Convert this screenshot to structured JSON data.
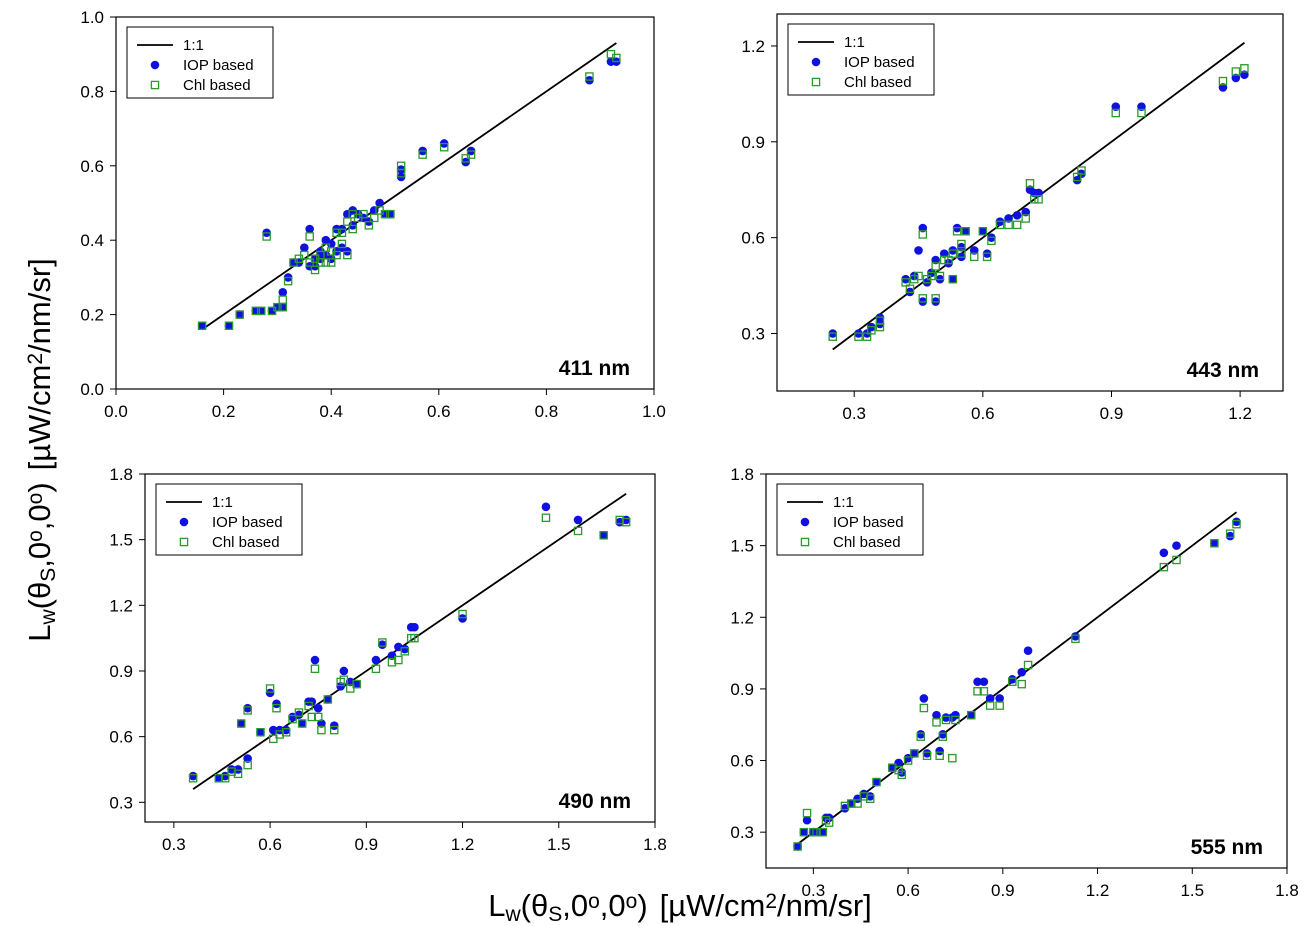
{
  "figure": {
    "ylabel": {
      "base": "L",
      "sub_w": "w",
      "open": "(θ",
      "sub_s": "S",
      "mid1": ",0",
      "sup_o1": "o",
      "mid2": ",0",
      "sup_o2": "o",
      "close": ")",
      "unit_pre": "[µW/cm",
      "sup_2": "2",
      "unit_post": "/nm/sr]"
    },
    "xlabel": {
      "base": "L",
      "sub_w": "w",
      "open": "(θ",
      "sub_s": "S",
      "mid1": ",0",
      "sup_o1": "o",
      "mid2": ",0",
      "sup_o2": "o",
      "close": ")",
      "unit_pre": "[µW/cm",
      "sup_2": "2",
      "unit_post": "/nm/sr]"
    }
  },
  "chart_data": [
    {
      "type": "scatter",
      "wavelength_label": "411 nm",
      "legend": {
        "line": "1:1",
        "iop": "IOP based",
        "chl": "Chl based",
        "placement": "top-left"
      },
      "xlim": [
        0.0,
        1.0
      ],
      "ylim": [
        0.0,
        1.0
      ],
      "xticks": [
        0.0,
        0.2,
        0.4,
        0.6,
        0.8,
        1.0
      ],
      "yticks": [
        0.0,
        0.2,
        0.4,
        0.6,
        0.8,
        1.0
      ],
      "tick_decimals": 1,
      "line_1to1": [
        0.16,
        0.93
      ],
      "colors": {
        "iop": "#1010e0",
        "chl": "#2a9a2a",
        "line": "#000000"
      },
      "series": [
        {
          "name": "IOP based",
          "marker": "circle",
          "x": [
            0.16,
            0.21,
            0.23,
            0.26,
            0.27,
            0.28,
            0.29,
            0.3,
            0.31,
            0.31,
            0.32,
            0.33,
            0.34,
            0.35,
            0.36,
            0.36,
            0.37,
            0.37,
            0.38,
            0.38,
            0.39,
            0.39,
            0.4,
            0.4,
            0.41,
            0.41,
            0.42,
            0.42,
            0.43,
            0.43,
            0.44,
            0.44,
            0.45,
            0.46,
            0.47,
            0.48,
            0.49,
            0.5,
            0.51,
            0.53,
            0.53,
            0.57,
            0.61,
            0.65,
            0.66,
            0.88,
            0.92,
            0.93
          ],
          "y": [
            0.17,
            0.17,
            0.2,
            0.21,
            0.21,
            0.42,
            0.21,
            0.22,
            0.26,
            0.22,
            0.3,
            0.34,
            0.34,
            0.38,
            0.33,
            0.43,
            0.35,
            0.33,
            0.35,
            0.37,
            0.4,
            0.36,
            0.35,
            0.39,
            0.37,
            0.43,
            0.38,
            0.43,
            0.47,
            0.37,
            0.44,
            0.48,
            0.47,
            0.46,
            0.45,
            0.48,
            0.5,
            0.47,
            0.47,
            0.57,
            0.59,
            0.64,
            0.66,
            0.61,
            0.64,
            0.83,
            0.88,
            0.88
          ]
        },
        {
          "name": "Chl based",
          "marker": "square",
          "x": [
            0.16,
            0.21,
            0.23,
            0.26,
            0.27,
            0.28,
            0.29,
            0.3,
            0.31,
            0.31,
            0.32,
            0.33,
            0.34,
            0.35,
            0.36,
            0.36,
            0.37,
            0.37,
            0.38,
            0.38,
            0.39,
            0.39,
            0.4,
            0.4,
            0.41,
            0.41,
            0.42,
            0.42,
            0.43,
            0.43,
            0.44,
            0.44,
            0.45,
            0.46,
            0.47,
            0.48,
            0.49,
            0.5,
            0.51,
            0.53,
            0.53,
            0.57,
            0.61,
            0.65,
            0.66,
            0.88,
            0.92,
            0.93
          ],
          "y": [
            0.17,
            0.17,
            0.2,
            0.21,
            0.21,
            0.41,
            0.21,
            0.22,
            0.24,
            0.22,
            0.29,
            0.34,
            0.35,
            0.36,
            0.34,
            0.41,
            0.35,
            0.32,
            0.34,
            0.36,
            0.38,
            0.34,
            0.34,
            0.37,
            0.36,
            0.42,
            0.39,
            0.42,
            0.45,
            0.36,
            0.43,
            0.47,
            0.46,
            0.47,
            0.44,
            0.46,
            0.48,
            0.47,
            0.47,
            0.6,
            0.58,
            0.63,
            0.65,
            0.62,
            0.63,
            0.84,
            0.9,
            0.89
          ]
        }
      ]
    },
    {
      "type": "scatter",
      "wavelength_label": "443 nm",
      "legend": {
        "line": "1:1",
        "iop": "IOP based",
        "chl": "Chl based",
        "placement": "top-left"
      },
      "xlim": [
        0.12,
        1.3
      ],
      "ylim": [
        0.12,
        1.3
      ],
      "xticks": [
        0.3,
        0.6,
        0.9,
        1.2
      ],
      "yticks": [
        0.3,
        0.6,
        0.9,
        1.2
      ],
      "tick_decimals": 1,
      "line_1to1": [
        0.25,
        1.21
      ],
      "colors": {
        "iop": "#1010e0",
        "chl": "#2a9a2a",
        "line": "#000000"
      },
      "series": [
        {
          "name": "IOP based",
          "marker": "circle",
          "x": [
            0.25,
            0.31,
            0.33,
            0.34,
            0.36,
            0.36,
            0.42,
            0.43,
            0.44,
            0.45,
            0.46,
            0.46,
            0.47,
            0.48,
            0.49,
            0.49,
            0.5,
            0.51,
            0.52,
            0.53,
            0.53,
            0.54,
            0.55,
            0.55,
            0.56,
            0.58,
            0.6,
            0.61,
            0.62,
            0.64,
            0.66,
            0.68,
            0.7,
            0.71,
            0.72,
            0.73,
            0.82,
            0.83,
            0.91,
            0.97,
            1.16,
            1.19,
            1.21
          ],
          "y": [
            0.3,
            0.3,
            0.3,
            0.32,
            0.33,
            0.35,
            0.47,
            0.43,
            0.48,
            0.56,
            0.63,
            0.4,
            0.46,
            0.49,
            0.4,
            0.53,
            0.47,
            0.55,
            0.52,
            0.47,
            0.56,
            0.63,
            0.57,
            0.54,
            0.62,
            0.56,
            0.62,
            0.55,
            0.6,
            0.65,
            0.66,
            0.67,
            0.68,
            0.75,
            0.74,
            0.74,
            0.78,
            0.8,
            1.01,
            1.01,
            1.07,
            1.1,
            1.11
          ]
        },
        {
          "name": "Chl based",
          "marker": "square",
          "x": [
            0.25,
            0.31,
            0.33,
            0.34,
            0.36,
            0.36,
            0.42,
            0.43,
            0.44,
            0.45,
            0.46,
            0.46,
            0.47,
            0.48,
            0.49,
            0.49,
            0.5,
            0.51,
            0.52,
            0.53,
            0.53,
            0.54,
            0.55,
            0.55,
            0.56,
            0.58,
            0.6,
            0.61,
            0.62,
            0.64,
            0.66,
            0.68,
            0.7,
            0.71,
            0.72,
            0.73,
            0.82,
            0.83,
            0.91,
            0.97,
            1.16,
            1.19,
            1.21
          ],
          "y": [
            0.29,
            0.29,
            0.29,
            0.31,
            0.32,
            0.34,
            0.46,
            0.44,
            0.47,
            0.48,
            0.61,
            0.41,
            0.47,
            0.48,
            0.41,
            0.51,
            0.48,
            0.53,
            0.53,
            0.47,
            0.55,
            0.62,
            0.58,
            0.55,
            0.62,
            0.54,
            0.62,
            0.54,
            0.59,
            0.64,
            0.64,
            0.64,
            0.66,
            0.77,
            0.72,
            0.72,
            0.79,
            0.81,
            0.99,
            0.99,
            1.09,
            1.12,
            1.13
          ]
        }
      ]
    },
    {
      "type": "scatter",
      "wavelength_label": "490 nm",
      "legend": {
        "line": "1:1",
        "iop": "IOP based",
        "chl": "Chl based",
        "placement": "top-left"
      },
      "xlim": [
        0.21,
        1.8
      ],
      "ylim": [
        0.21,
        1.8
      ],
      "xticks": [
        0.3,
        0.6,
        0.9,
        1.2,
        1.5,
        1.8
      ],
      "yticks": [
        0.3,
        0.6,
        0.9,
        1.2,
        1.5,
        1.8
      ],
      "tick_decimals": 1,
      "line_1to1": [
        0.36,
        1.71
      ],
      "colors": {
        "iop": "#1010e0",
        "chl": "#2a9a2a",
        "line": "#000000"
      },
      "series": [
        {
          "name": "IOP based",
          "marker": "circle",
          "x": [
            0.36,
            0.44,
            0.46,
            0.48,
            0.5,
            0.51,
            0.53,
            0.53,
            0.57,
            0.6,
            0.61,
            0.62,
            0.63,
            0.65,
            0.67,
            0.69,
            0.7,
            0.72,
            0.73,
            0.74,
            0.75,
            0.76,
            0.78,
            0.8,
            0.82,
            0.83,
            0.85,
            0.87,
            0.93,
            0.95,
            0.98,
            1.0,
            1.02,
            1.04,
            1.05,
            1.2,
            1.46,
            1.56,
            1.64,
            1.69,
            1.71
          ],
          "y": [
            0.42,
            0.41,
            0.42,
            0.45,
            0.45,
            0.66,
            0.5,
            0.73,
            0.62,
            0.8,
            0.63,
            0.75,
            0.63,
            0.63,
            0.69,
            0.7,
            0.66,
            0.76,
            0.76,
            0.95,
            0.73,
            0.66,
            0.77,
            0.65,
            0.83,
            0.9,
            0.85,
            0.84,
            0.95,
            1.02,
            0.97,
            1.01,
            1.0,
            1.1,
            1.1,
            1.14,
            1.65,
            1.59,
            1.52,
            1.58,
            1.59
          ]
        },
        {
          "name": "Chl based",
          "marker": "square",
          "x": [
            0.36,
            0.44,
            0.46,
            0.48,
            0.5,
            0.51,
            0.53,
            0.53,
            0.57,
            0.6,
            0.61,
            0.62,
            0.63,
            0.65,
            0.67,
            0.69,
            0.7,
            0.72,
            0.73,
            0.74,
            0.75,
            0.76,
            0.78,
            0.8,
            0.82,
            0.83,
            0.85,
            0.87,
            0.93,
            0.95,
            0.98,
            1.0,
            1.02,
            1.04,
            1.05,
            1.2,
            1.46,
            1.56,
            1.64,
            1.69,
            1.71
          ],
          "y": [
            0.41,
            0.41,
            0.41,
            0.44,
            0.43,
            0.66,
            0.47,
            0.72,
            0.62,
            0.82,
            0.59,
            0.73,
            0.61,
            0.62,
            0.68,
            0.71,
            0.66,
            0.74,
            0.69,
            0.91,
            0.69,
            0.63,
            0.77,
            0.63,
            0.85,
            0.86,
            0.82,
            0.84,
            0.91,
            1.03,
            0.94,
            0.95,
            0.99,
            1.05,
            1.05,
            1.16,
            1.6,
            1.54,
            1.52,
            1.59,
            1.58
          ]
        }
      ]
    },
    {
      "type": "scatter",
      "wavelength_label": "555 nm",
      "legend": {
        "line": "1:1",
        "iop": "IOP based",
        "chl": "Chl based",
        "placement": "top-left"
      },
      "xlim": [
        0.15,
        1.8
      ],
      "ylim": [
        0.15,
        1.8
      ],
      "xticks": [
        0.3,
        0.6,
        0.9,
        1.2,
        1.5,
        1.8
      ],
      "yticks": [
        0.3,
        0.6,
        0.9,
        1.2,
        1.5,
        1.8
      ],
      "tick_decimals": 1,
      "line_1to1": [
        0.25,
        1.64
      ],
      "colors": {
        "iop": "#1010e0",
        "chl": "#2a9a2a",
        "line": "#000000"
      },
      "series": [
        {
          "name": "IOP based",
          "marker": "circle",
          "x": [
            0.25,
            0.27,
            0.28,
            0.3,
            0.31,
            0.33,
            0.34,
            0.35,
            0.4,
            0.42,
            0.44,
            0.46,
            0.48,
            0.5,
            0.55,
            0.57,
            0.58,
            0.6,
            0.62,
            0.64,
            0.65,
            0.66,
            0.69,
            0.7,
            0.71,
            0.72,
            0.74,
            0.75,
            0.8,
            0.82,
            0.84,
            0.86,
            0.89,
            0.93,
            0.96,
            0.98,
            1.13,
            1.41,
            1.45,
            1.57,
            1.62,
            1.64
          ],
          "y": [
            0.24,
            0.3,
            0.35,
            0.3,
            0.3,
            0.3,
            0.36,
            0.36,
            0.4,
            0.42,
            0.44,
            0.46,
            0.45,
            0.51,
            0.57,
            0.59,
            0.55,
            0.61,
            0.63,
            0.71,
            0.86,
            0.63,
            0.79,
            0.64,
            0.71,
            0.78,
            0.78,
            0.79,
            0.79,
            0.93,
            0.93,
            0.86,
            0.86,
            0.94,
            0.97,
            1.06,
            1.12,
            1.47,
            1.5,
            1.51,
            1.54,
            1.6
          ]
        },
        {
          "name": "Chl based",
          "marker": "square",
          "x": [
            0.25,
            0.27,
            0.28,
            0.3,
            0.31,
            0.33,
            0.34,
            0.35,
            0.4,
            0.42,
            0.44,
            0.46,
            0.48,
            0.5,
            0.55,
            0.57,
            0.58,
            0.6,
            0.62,
            0.64,
            0.65,
            0.66,
            0.69,
            0.7,
            0.71,
            0.72,
            0.74,
            0.75,
            0.8,
            0.82,
            0.84,
            0.86,
            0.89,
            0.93,
            0.96,
            0.98,
            1.13,
            1.41,
            1.45,
            1.57,
            1.62,
            1.64
          ],
          "y": [
            0.24,
            0.3,
            0.38,
            0.3,
            0.3,
            0.3,
            0.35,
            0.34,
            0.41,
            0.42,
            0.42,
            0.45,
            0.44,
            0.51,
            0.57,
            0.56,
            0.54,
            0.6,
            0.63,
            0.7,
            0.82,
            0.62,
            0.76,
            0.62,
            0.7,
            0.77,
            0.61,
            0.77,
            0.79,
            0.89,
            0.89,
            0.83,
            0.83,
            0.93,
            0.92,
            1.0,
            1.11,
            1.41,
            1.44,
            1.51,
            1.55,
            1.59
          ]
        }
      ]
    }
  ]
}
